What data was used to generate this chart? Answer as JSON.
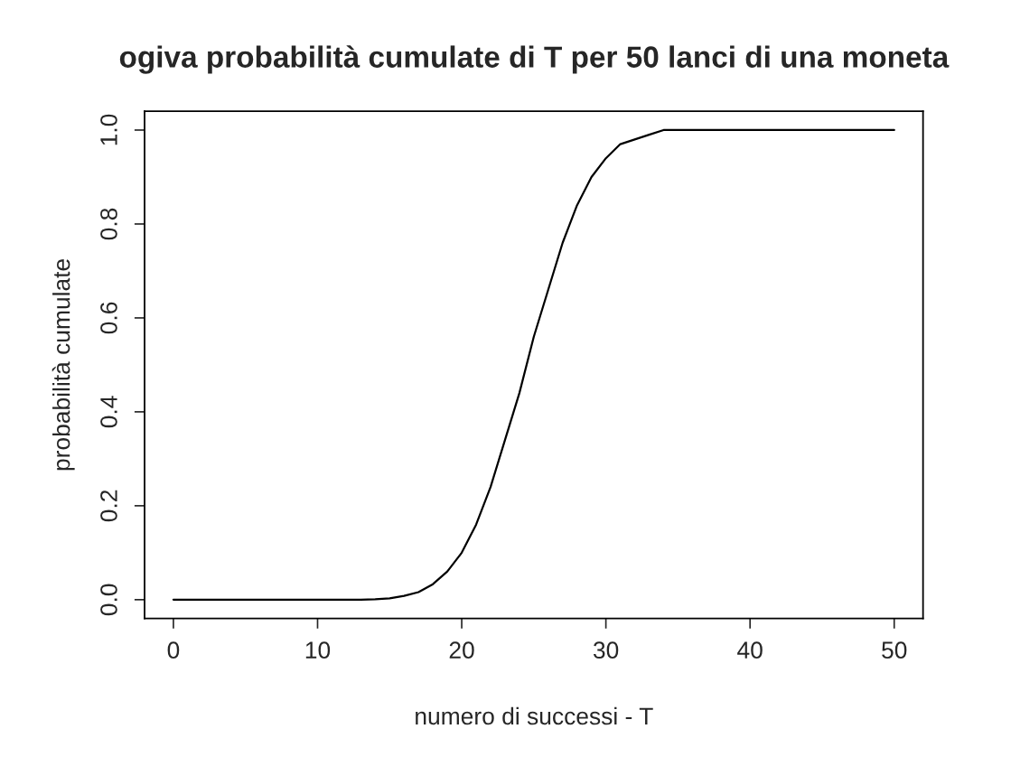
{
  "chart_data": {
    "type": "line",
    "title": "ogiva probabilità cumulate di T per 50 lanci di una moneta",
    "xlabel": "numero di successi - T",
    "ylabel": "probabilità cumulate",
    "x": [
      0,
      1,
      2,
      3,
      4,
      5,
      6,
      7,
      8,
      9,
      10,
      11,
      12,
      13,
      14,
      15,
      16,
      17,
      18,
      19,
      20,
      21,
      22,
      23,
      24,
      25,
      26,
      27,
      28,
      29,
      30,
      31,
      32,
      33,
      34,
      35,
      36,
      37,
      38,
      39,
      40,
      41,
      42,
      43,
      44,
      45,
      46,
      47,
      48,
      49,
      50
    ],
    "series": [
      {
        "color": "#000000",
        "values": [
          0,
          0,
          0,
          0,
          0,
          0,
          0,
          0,
          0,
          0,
          0,
          0,
          0,
          0,
          0.001,
          0.003,
          0.008,
          0.016,
          0.033,
          0.06,
          0.1,
          0.16,
          0.24,
          0.34,
          0.44,
          0.56,
          0.66,
          0.76,
          0.84,
          0.9,
          0.94,
          0.97,
          0.98,
          0.99,
          1.0,
          1.0,
          1.0,
          1.0,
          1.0,
          1.0,
          1.0,
          1.0,
          1.0,
          1.0,
          1.0,
          1.0,
          1.0,
          1.0,
          1.0,
          1.0,
          1.0
        ]
      }
    ],
    "xlim": [
      -2,
      52
    ],
    "ylim": [
      -0.04,
      1.04
    ],
    "xticks": [
      0,
      10,
      20,
      30,
      40,
      50
    ],
    "yticks": [
      {
        "value": 0,
        "label": "0.0"
      },
      {
        "value": 0.2,
        "label": "0.2"
      },
      {
        "value": 0.4,
        "label": "0.4"
      },
      {
        "value": 0.6,
        "label": "0.6"
      },
      {
        "value": 0.8,
        "label": "0.8"
      },
      {
        "value": 1.0,
        "label": "1.0"
      }
    ],
    "grid": false,
    "legend": false,
    "marker": "none",
    "line_style": "solid"
  }
}
